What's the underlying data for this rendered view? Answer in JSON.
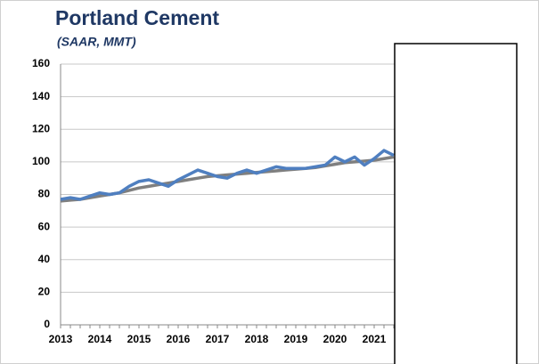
{
  "chart_data": {
    "type": "line",
    "title": "Portland Cement",
    "subtitle": "(SAAR, MMT)",
    "categories": [
      "2013",
      null,
      null,
      null,
      "2014",
      null,
      null,
      null,
      "2015",
      null,
      null,
      null,
      "2016",
      null,
      null,
      null,
      "2017",
      null,
      null,
      null,
      "2018",
      null,
      null,
      null,
      "2019",
      null,
      null,
      null,
      "2020",
      null,
      null,
      null,
      "2021",
      null,
      null
    ],
    "series": [
      {
        "color": "#7f7f7f",
        "values": [
          76,
          76.5,
          77,
          78,
          79,
          80,
          81,
          82.5,
          84,
          85,
          86,
          87,
          88,
          89,
          90,
          91,
          91.5,
          92,
          92.5,
          93,
          93.5,
          94,
          94.5,
          95,
          95.5,
          96,
          96.5,
          97.5,
          98.5,
          99.5,
          100,
          100.5,
          101,
          102,
          103
        ]
      },
      {
        "color": "#4f7fc0",
        "values": [
          77,
          78,
          77,
          79,
          81,
          80,
          81,
          85,
          88,
          89,
          87,
          85,
          89,
          92,
          95,
          93,
          91,
          90,
          93,
          95,
          93,
          95,
          97,
          96,
          96,
          96,
          97,
          98,
          103,
          100,
          103,
          98,
          102,
          107,
          104
        ]
      }
    ],
    "ylim": [
      0,
      160
    ],
    "yticks": [
      0,
      20,
      40,
      60,
      80,
      100,
      120,
      140,
      160
    ],
    "grid": true
  }
}
